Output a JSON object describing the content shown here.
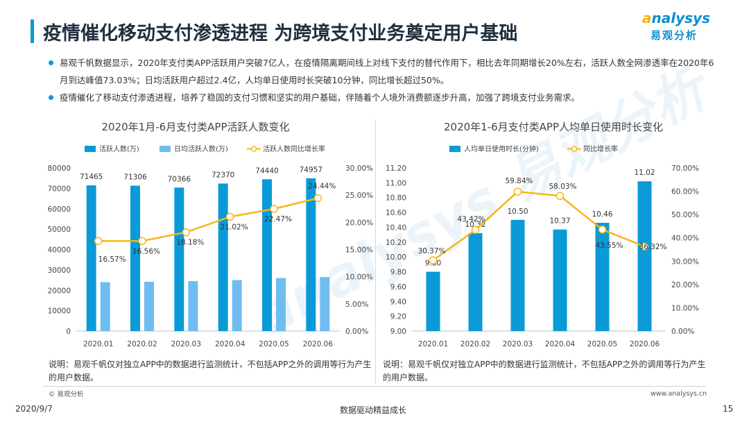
{
  "header": {
    "title": "疫情催化移动支付渗透进程 为跨境支付业务奠定用户基础",
    "logo_en_a": "a",
    "logo_en_rest": "nalysys",
    "logo_cn": "易观分析"
  },
  "bullets": [
    "易观千帆数据显示，2020年支付类APP活跃用户突破7亿人，在疫情隔离期间线上对线下支付的替代作用下，相比去年同期增长20%左右，活跃人数全网渗透率在2020年6月到达峰值73.03%；日均活跃用户超过2.4亿，人均单日使用时长突破10分钟，同比增长超过50%。",
    "疫情催化了移动支付渗透进程，培养了稳固的支付习惯和坚实的用户基础，伴随着个人境外消费额逐步升高，加强了跨境支付业务需求。"
  ],
  "watermark": "analysys 易观分析",
  "chart_data": [
    {
      "type": "bar",
      "title": "2020年1月-6月支付类APP活跃人数变化",
      "categories": [
        "2020.01",
        "2020.02",
        "2020.03",
        "2020.04",
        "2020.05",
        "2020.06"
      ],
      "series": [
        {
          "name": "活跃人数(万)",
          "kind": "bar",
          "axis": "left",
          "color": "#0a9ad8",
          "values": [
            71465,
            71306,
            70366,
            72370,
            74440,
            74957
          ],
          "labels": [
            "71465",
            "71306",
            "70366",
            "72370",
            "74440",
            "74957"
          ]
        },
        {
          "name": "日均活跃人数(万)",
          "kind": "bar",
          "axis": "left",
          "color": "#6fbdf0",
          "values": [
            24000,
            24200,
            24500,
            25000,
            26000,
            26500
          ]
        },
        {
          "name": "活跃人数同比增长率",
          "kind": "line",
          "axis": "right",
          "color": "#f5b719",
          "values": [
            16.57,
            16.56,
            18.18,
            21.02,
            22.47,
            24.44
          ],
          "labels": [
            "16.57%",
            "16.56%",
            "18.18%",
            "21.02%",
            "22.47%",
            "24.44%"
          ]
        }
      ],
      "ylim": [
        0,
        80000
      ],
      "yticks": [
        "0",
        "10000",
        "20000",
        "30000",
        "40000",
        "50000",
        "60000",
        "70000",
        "80000"
      ],
      "y2lim": [
        0,
        30
      ],
      "y2ticks": [
        "0.00%",
        "5.00%",
        "10.00%",
        "15.00%",
        "20.00%",
        "25.00%",
        "30.00%"
      ],
      "legend": "top",
      "grid": false
    },
    {
      "type": "bar",
      "title": "2020年1-6月支付类APP人均单日使用时长变化",
      "categories": [
        "2020.01",
        "2020.02",
        "2020.03",
        "2020.04",
        "2020.05",
        "2020.06"
      ],
      "series": [
        {
          "name": "人均单日使用时长(分钟)",
          "kind": "bar",
          "axis": "left",
          "color": "#0a9ad8",
          "values": [
            9.8,
            10.32,
            10.5,
            10.37,
            10.46,
            11.02
          ],
          "labels": [
            "9.80",
            "10.32",
            "10.50",
            "10.37",
            "10.46",
            "11.02"
          ]
        },
        {
          "name": "同比增长率",
          "kind": "line",
          "axis": "right",
          "color": "#f5b719",
          "values": [
            30.37,
            43.42,
            59.84,
            58.03,
            43.55,
            36.32
          ],
          "labels": [
            "30.37%",
            "43.42%",
            "59.84%",
            "58.03%",
            "43.55%",
            "36.32%"
          ]
        }
      ],
      "ylim": [
        9.0,
        11.2
      ],
      "yticks": [
        "9.00",
        "9.20",
        "9.40",
        "9.60",
        "9.80",
        "10.00",
        "10.20",
        "10.40",
        "10.60",
        "10.80",
        "11.00",
        "11.20"
      ],
      "y2lim": [
        0,
        70
      ],
      "y2ticks": [
        "0.00%",
        "10.00%",
        "20.00%",
        "30.00%",
        "40.00%",
        "50.00%",
        "60.00%",
        "70.00%"
      ],
      "legend": "top",
      "grid": false
    }
  ],
  "notes": [
    "说明：易观千帆仅对独立APP中的数据进行监测统计，不包括APP之外的调用等行为产生的用户数据。",
    "说明：易观千帆仅对独立APP中的数据进行监测统计，不包括APP之外的调用等行为产生的用户数据。"
  ],
  "footer": {
    "copyright": "© 易观分析",
    "site": "www.analysys.cn",
    "date": "2020/9/7",
    "slogan": "数据驱动精益成长",
    "page": "15"
  }
}
